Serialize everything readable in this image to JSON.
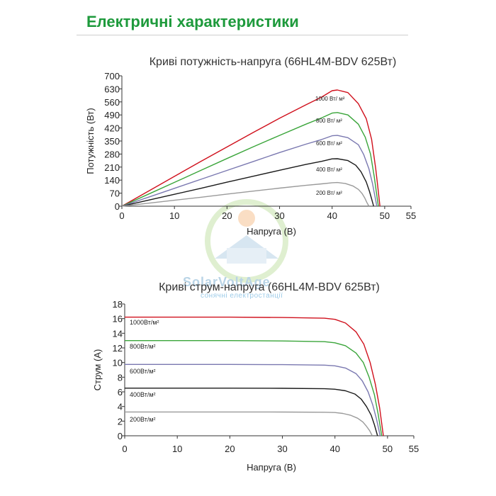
{
  "page": {
    "title": "Електричні характеристики"
  },
  "watermark": {
    "name": "SolarVoltAge",
    "subtitle": "сонячні електростанції"
  },
  "chart_data": [
    {
      "type": "line",
      "title": "Криві потужність-напруга (66HL4M-BDV 625Вт)",
      "xlabel": "Напруга (В)",
      "ylabel": "Потужність (Вт)",
      "xlim": [
        0,
        55
      ],
      "ylim": [
        0,
        700
      ],
      "xticks": [
        0,
        10,
        20,
        30,
        40,
        50,
        55
      ],
      "yticks": [
        0,
        70,
        140,
        210,
        280,
        350,
        420,
        490,
        560,
        630,
        700
      ],
      "grid": false,
      "series": [
        {
          "name": "1000 Вт/ м²",
          "color": "#d0101c",
          "x": [
            0,
            5,
            10,
            15,
            20,
            25,
            30,
            35,
            38,
            40,
            41,
            43,
            45,
            46.5,
            47.5,
            48.3,
            48.7,
            49.1
          ],
          "y": [
            0,
            80,
            160,
            240,
            318,
            396,
            472,
            544,
            586,
            620,
            624,
            610,
            550,
            470,
            360,
            200,
            100,
            0
          ]
        },
        {
          "name": "800 Вт/ м²",
          "color": "#3aa53a",
          "x": [
            0,
            5,
            10,
            15,
            20,
            25,
            30,
            35,
            38,
            40,
            41,
            43,
            45,
            46.3,
            47.3,
            48,
            48.4,
            48.8
          ],
          "y": [
            0,
            64,
            128,
            192,
            256,
            319,
            380,
            440,
            474,
            500,
            503,
            490,
            440,
            370,
            280,
            160,
            80,
            0
          ]
        },
        {
          "name": "600 Вт/ м²",
          "color": "#7a78b0",
          "x": [
            0,
            5,
            10,
            15,
            20,
            25,
            30,
            35,
            38,
            40,
            41,
            43,
            45,
            46,
            47,
            47.7,
            48.1,
            48.5
          ],
          "y": [
            0,
            48,
            96,
            144,
            192,
            240,
            288,
            333,
            358,
            378,
            380,
            368,
            330,
            278,
            200,
            120,
            60,
            0
          ]
        },
        {
          "name": "400 Вт/ м²",
          "color": "#1a1a1a",
          "x": [
            0,
            5,
            10,
            15,
            20,
            25,
            30,
            35,
            38,
            40,
            41,
            43,
            44.5,
            45.5,
            46.5,
            47.1,
            47.5,
            47.9
          ],
          "y": [
            0,
            32,
            64,
            96,
            129,
            161,
            193,
            224,
            241,
            254,
            255,
            245,
            220,
            185,
            130,
            80,
            40,
            0
          ]
        },
        {
          "name": "200 Вт/ м²",
          "color": "#9a9a9a",
          "x": [
            0,
            5,
            10,
            15,
            20,
            25,
            30,
            35,
            38,
            40,
            41,
            42.5,
            44,
            45,
            45.7,
            46.2,
            46.6,
            47
          ],
          "y": [
            0,
            16,
            32,
            48,
            65,
            81,
            97,
            112,
            120,
            126,
            127,
            122,
            108,
            90,
            68,
            45,
            20,
            0
          ]
        }
      ]
    },
    {
      "type": "line",
      "title": "Криві струм-напруга (66HL4M-BDV 625Вт)",
      "xlabel": "Напруга (В)",
      "ylabel": "Струм (А)",
      "xlim": [
        0,
        55
      ],
      "ylim": [
        0,
        18
      ],
      "xticks": [
        0,
        10,
        20,
        30,
        40,
        50,
        55
      ],
      "yticks": [
        0,
        2,
        4,
        6,
        8,
        10,
        12,
        14,
        16,
        18
      ],
      "grid": false,
      "series": [
        {
          "name": "1000Вт/м²",
          "color": "#d0101c",
          "x": [
            0,
            10,
            20,
            30,
            38,
            40,
            42,
            44,
            45.5,
            46.7,
            47.7,
            48.5,
            49.2
          ],
          "y": [
            16.2,
            16.2,
            16.2,
            16.15,
            16.05,
            15.9,
            15.4,
            14.2,
            12.5,
            10.0,
            7.0,
            3.8,
            0
          ]
        },
        {
          "name": "800Вт/м²",
          "color": "#3aa53a",
          "x": [
            0,
            10,
            20,
            30,
            38,
            40,
            42,
            44,
            45.4,
            46.5,
            47.5,
            48.2,
            48.9
          ],
          "y": [
            13.0,
            13.0,
            13.0,
            12.95,
            12.85,
            12.7,
            12.3,
            11.3,
            10.0,
            8.0,
            5.6,
            3.0,
            0
          ]
        },
        {
          "name": "600Вт/м²",
          "color": "#7a78b0",
          "x": [
            0,
            10,
            20,
            30,
            38,
            40,
            42,
            44,
            45.2,
            46.3,
            47.2,
            47.9,
            48.6
          ],
          "y": [
            9.75,
            9.75,
            9.75,
            9.72,
            9.65,
            9.55,
            9.25,
            8.5,
            7.5,
            6.0,
            4.2,
            2.3,
            0
          ]
        },
        {
          "name": "400Вт/м²",
          "color": "#1a1a1a",
          "x": [
            0,
            10,
            20,
            30,
            38,
            40,
            42,
            43.8,
            45,
            46,
            46.9,
            47.5,
            48.1
          ],
          "y": [
            6.5,
            6.5,
            6.5,
            6.48,
            6.43,
            6.36,
            6.15,
            5.7,
            5.0,
            4.0,
            2.8,
            1.5,
            0
          ]
        },
        {
          "name": "200Вт/м²",
          "color": "#9a9a9a",
          "x": [
            0,
            10,
            20,
            30,
            38,
            40,
            41.5,
            43,
            44.3,
            45.3,
            46,
            46.6,
            47.1
          ],
          "y": [
            3.25,
            3.25,
            3.25,
            3.24,
            3.21,
            3.17,
            3.05,
            2.8,
            2.4,
            1.9,
            1.3,
            0.7,
            0
          ]
        }
      ]
    }
  ]
}
